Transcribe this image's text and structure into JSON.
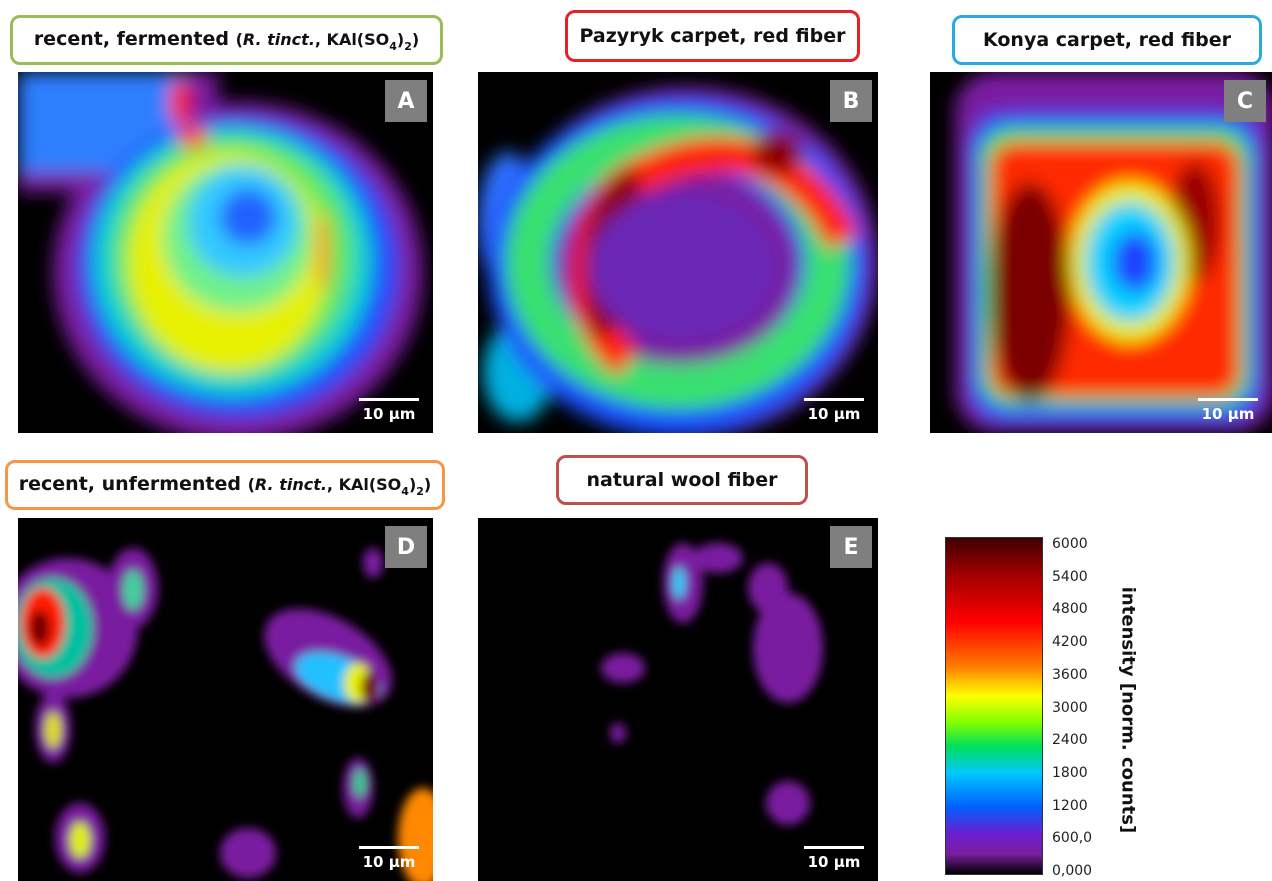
{
  "panels": [
    {
      "letter": "A",
      "border_color": "#9bbb59",
      "scale_bar": "10 µm",
      "title_parts": [
        {
          "text": "recent, fermented ",
          "style": "normal"
        },
        {
          "text": "(",
          "style": "small"
        },
        {
          "text": "R. tinct.",
          "style": "italic"
        },
        {
          "text": ", KAl(SO",
          "style": "small"
        },
        {
          "text": "4",
          "style": "sub"
        },
        {
          "text": ")",
          "style": "small"
        },
        {
          "text": "2",
          "style": "sub"
        },
        {
          "text": ")",
          "style": "small"
        }
      ]
    },
    {
      "letter": "B",
      "border_color": "#e8202a",
      "scale_bar": "10 µm",
      "title_parts": [
        {
          "text": "Pazyryk carpet, red fiber",
          "style": "normal"
        }
      ]
    },
    {
      "letter": "C",
      "border_color": "#29abe2",
      "scale_bar": "10 µm",
      "title_parts": [
        {
          "text": "Konya carpet, red fiber",
          "style": "normal"
        }
      ]
    },
    {
      "letter": "D",
      "border_color": "#f79646",
      "scale_bar": "10 µm",
      "title_parts": [
        {
          "text": "recent, unfermented ",
          "style": "normal"
        },
        {
          "text": "(",
          "style": "small"
        },
        {
          "text": "R. tinct.",
          "style": "italic"
        },
        {
          "text": ", KAl(SO",
          "style": "small"
        },
        {
          "text": "4",
          "style": "sub"
        },
        {
          "text": ")",
          "style": "small"
        },
        {
          "text": "2",
          "style": "sub"
        },
        {
          "text": ")",
          "style": "small"
        }
      ]
    },
    {
      "letter": "E",
      "border_color": "#c0504d",
      "scale_bar": "10 µm",
      "title_parts": [
        {
          "text": "natural wool fiber",
          "style": "normal"
        }
      ]
    }
  ],
  "colorbar": {
    "label": "intensity [norm. counts]",
    "ticks": [
      "6000",
      "5400",
      "4800",
      "4200",
      "3600",
      "3000",
      "2400",
      "1800",
      "1200",
      "600,0",
      "0,000"
    ]
  }
}
